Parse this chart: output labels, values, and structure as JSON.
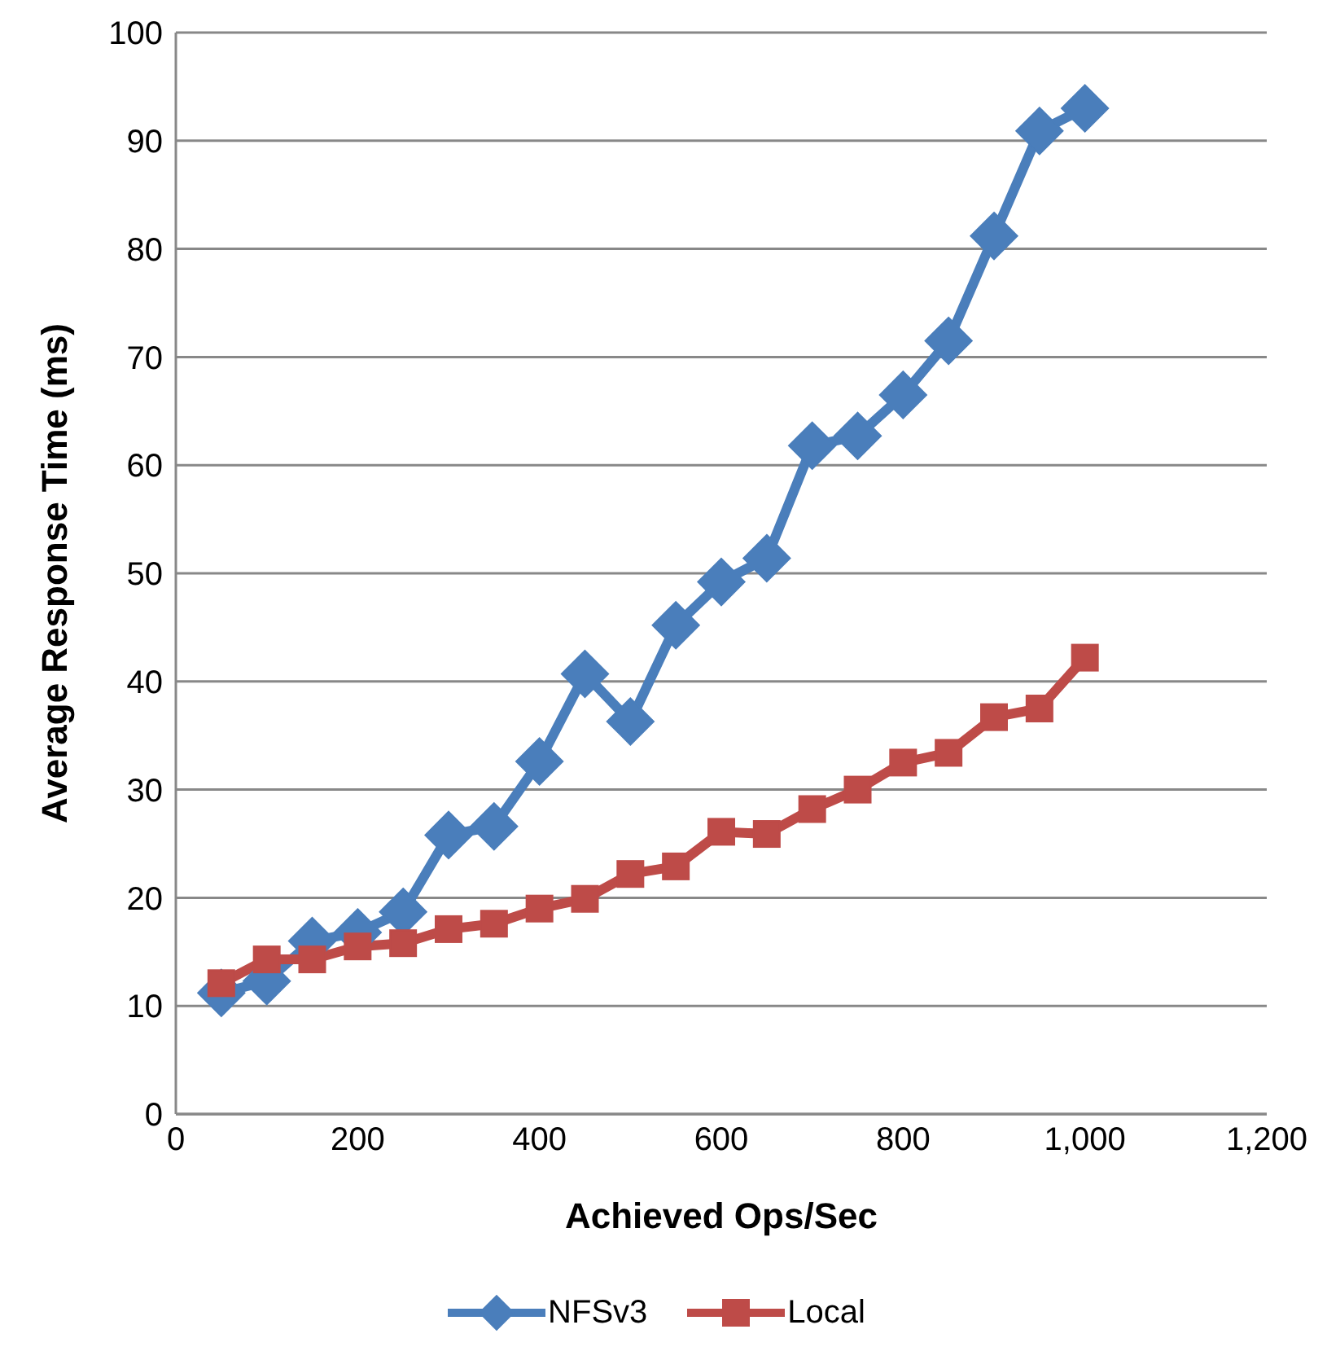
{
  "chart_data": {
    "type": "line",
    "xlabel": "Achieved Ops/Sec",
    "ylabel": "Average Response Time (ms)",
    "x": [
      50,
      100,
      150,
      200,
      250,
      300,
      350,
      400,
      450,
      500,
      550,
      600,
      650,
      700,
      750,
      800,
      850,
      900,
      950,
      1000
    ],
    "series": [
      {
        "name": "NFSv3",
        "color": "#4a7ebb",
        "marker": "diamond",
        "values": [
          11.2,
          12.3,
          16,
          16.8,
          18.7,
          25.8,
          26.6,
          32.6,
          40.7,
          36.3,
          45.2,
          49.2,
          51.4,
          61.8,
          62.7,
          66.5,
          71.5,
          81.2,
          90.9,
          93
        ]
      },
      {
        "name": "Local",
        "color": "#be4b48",
        "marker": "square",
        "values": [
          12.1,
          14.3,
          14.3,
          15.5,
          15.8,
          17.1,
          17.6,
          19,
          19.9,
          22.2,
          22.9,
          26.1,
          25.9,
          28.2,
          30,
          32.5,
          33.4,
          36.7,
          37.5,
          42.2
        ]
      }
    ],
    "xlim": [
      0,
      1200
    ],
    "xticks": [
      0,
      200,
      400,
      600,
      800,
      {
        "value": 1000,
        "label": "1,000"
      },
      {
        "value": 1200,
        "label": "1,200"
      }
    ],
    "ylim": [
      0,
      100
    ],
    "yticks": [
      0,
      10,
      20,
      30,
      40,
      50,
      60,
      70,
      80,
      90,
      100
    ],
    "grid": "y",
    "legend": "bottom",
    "line_style": "solid"
  }
}
